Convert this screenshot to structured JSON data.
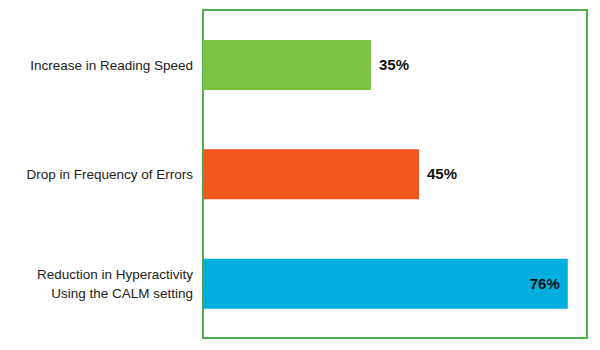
{
  "chart_data": {
    "type": "bar",
    "orientation": "horizontal",
    "categories": [
      "Increase in Reading Speed",
      "Drop in Frequency of Errors",
      "Reduction in Hyperactivity Using the CALM setting"
    ],
    "values": [
      35,
      45,
      76
    ],
    "value_labels": [
      "35%",
      "45%",
      "76%"
    ],
    "colors": [
      "#7dc242",
      "#f0561d",
      "#00aee0"
    ],
    "xlim": [
      0,
      80
    ],
    "xticks": [
      0,
      20,
      40,
      60,
      80
    ],
    "grid": true,
    "data_labels": true,
    "tick_labels": false
  }
}
